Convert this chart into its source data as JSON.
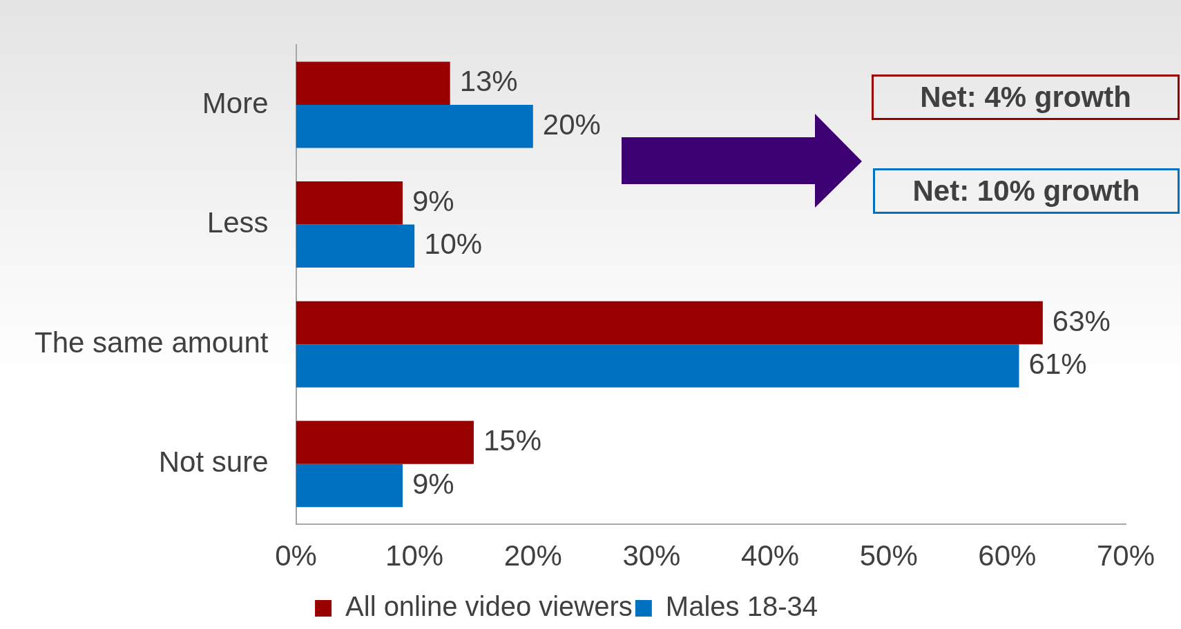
{
  "chart_data": {
    "type": "bar",
    "orientation": "horizontal",
    "categories": [
      "More",
      "Less",
      "The same amount",
      "Not sure"
    ],
    "series": [
      {
        "name": "All online video viewers",
        "color": "#990000",
        "values": [
          13,
          9,
          63,
          15
        ],
        "value_labels": [
          "13%",
          "9%",
          "63%",
          "15%"
        ]
      },
      {
        "name": "Males 18-34",
        "color": "#0070c0",
        "values": [
          20,
          10,
          61,
          9
        ],
        "value_labels": [
          "20%",
          "10%",
          "61%",
          "9%"
        ]
      }
    ],
    "xlim": [
      0,
      70
    ],
    "xticks": [
      {
        "value": 0,
        "label": "0%"
      },
      {
        "value": 10,
        "label": "10%"
      },
      {
        "value": 20,
        "label": "20%"
      },
      {
        "value": 30,
        "label": "30%"
      },
      {
        "value": 40,
        "label": "40%"
      },
      {
        "value": 50,
        "label": "50%"
      },
      {
        "value": 60,
        "label": "60%"
      },
      {
        "value": 70,
        "label": "70%"
      }
    ],
    "grid": false,
    "legend": "bottom",
    "annotations": [
      "Net: 4% growth",
      "Net: 10% growth"
    ]
  }
}
